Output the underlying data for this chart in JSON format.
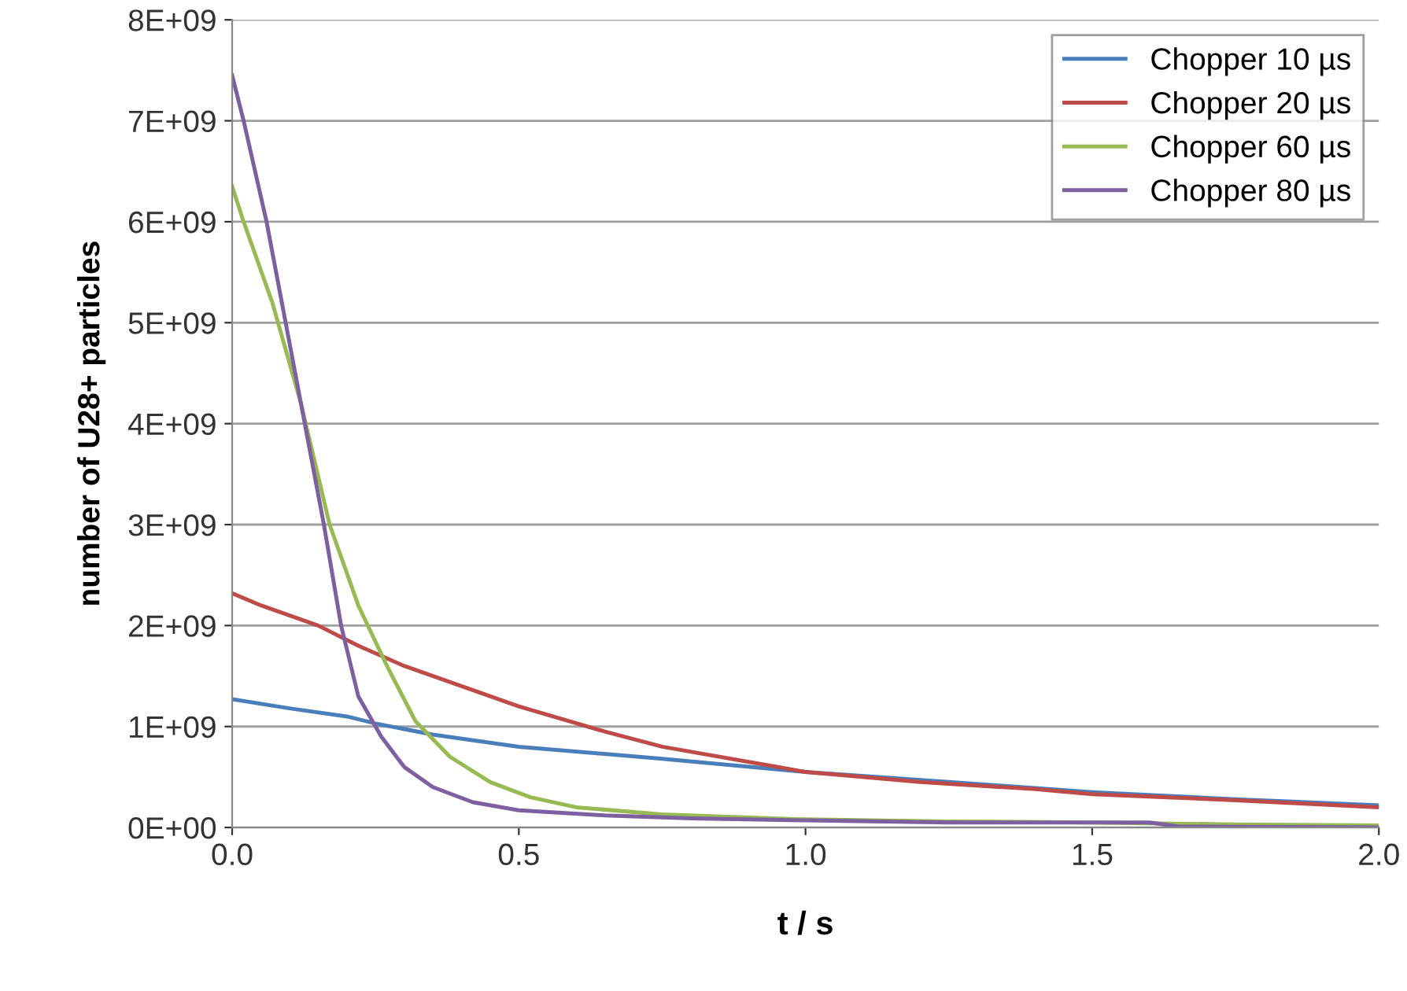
{
  "chart_data": {
    "type": "line",
    "xlabel": "t / s",
    "ylabel": "number of U28+ particles",
    "xlim": [
      0,
      2.0
    ],
    "xticks": [
      {
        "value": 0,
        "label": "0.0"
      },
      0.5,
      {
        "value": 1,
        "label": "1.0"
      },
      1.5,
      {
        "value": 2,
        "label": "2.0"
      }
    ],
    "ylim": [
      0,
      8000000000
    ],
    "yticks": [
      {
        "value": 0,
        "label": "0E+00"
      },
      {
        "value": 1000000000,
        "label": "1E+09"
      },
      {
        "value": 2000000000,
        "label": "2E+09"
      },
      {
        "value": 3000000000,
        "label": "3E+09"
      },
      {
        "value": 4000000000,
        "label": "4E+09"
      },
      {
        "value": 5000000000,
        "label": "5E+09"
      },
      {
        "value": 6000000000,
        "label": "6E+09"
      },
      {
        "value": 7000000000,
        "label": "7E+09"
      },
      {
        "value": 8000000000,
        "label": "8E+09"
      }
    ],
    "grid": "y",
    "legend": "top right",
    "marker": "none",
    "line_style": "solid",
    "series": [
      {
        "name": "Chopper 10 µs",
        "color": "#4a7ebb",
        "x": [
          0,
          0.1,
          0.2,
          0.25,
          0.35,
          0.5,
          0.75,
          1.0,
          1.25,
          1.5,
          1.75,
          2.0
        ],
        "values": [
          1270000000,
          1180000000,
          1100000000,
          1030000000,
          920000000,
          800000000,
          680000000,
          550000000,
          450000000,
          350000000,
          280000000,
          220000000
        ]
      },
      {
        "name": "Chopper 20 µs",
        "color": "#be4b48",
        "x": [
          0,
          0.05,
          0.15,
          0.22,
          0.3,
          0.4,
          0.5,
          0.65,
          0.75,
          0.95,
          1.0,
          1.2,
          1.4,
          1.5,
          1.75,
          2.0
        ],
        "values": [
          2320000000,
          2200000000,
          2000000000,
          1800000000,
          1600000000,
          1400000000,
          1200000000,
          950000000,
          800000000,
          600000000,
          550000000,
          450000000,
          380000000,
          330000000,
          270000000,
          200000000
        ]
      },
      {
        "name": "Chopper 60 µs",
        "color": "#98b954",
        "x": [
          0,
          0.02,
          0.07,
          0.12,
          0.17,
          0.22,
          0.27,
          0.32,
          0.38,
          0.45,
          0.52,
          0.6,
          0.75,
          1.0,
          1.25,
          1.5,
          1.75,
          2.0
        ],
        "values": [
          6350000000,
          6000000000,
          5200000000,
          4200000000,
          3000000000,
          2200000000,
          1600000000,
          1050000000,
          700000000,
          450000000,
          300000000,
          200000000,
          130000000,
          80000000,
          60000000,
          50000000,
          30000000,
          20000000
        ]
      },
      {
        "name": "Chopper 80 µs",
        "color": "#7d60a0",
        "x": [
          0,
          0.02,
          0.06,
          0.11,
          0.16,
          0.19,
          0.22,
          0.26,
          0.3,
          0.35,
          0.42,
          0.5,
          0.65,
          0.8,
          1.0,
          1.25,
          1.6,
          1.65,
          2.0
        ],
        "values": [
          7450000000,
          7000000000,
          6000000000,
          4500000000,
          3000000000,
          2000000000,
          1300000000,
          900000000,
          600000000,
          400000000,
          250000000,
          170000000,
          120000000,
          90000000,
          70000000,
          50000000,
          50000000,
          10000000,
          0
        ]
      }
    ]
  }
}
